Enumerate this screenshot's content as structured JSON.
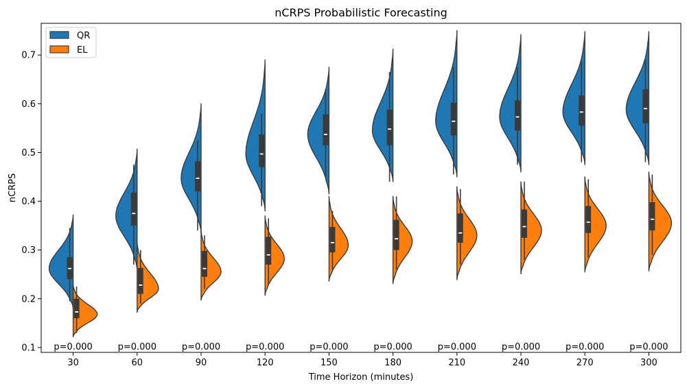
{
  "chart_data": {
    "type": "violin",
    "title": "nCRPS Probabilistic Forecasting",
    "xlabel": "Time Horizon (minutes)",
    "ylabel": "nCRPS",
    "categories": [
      "30",
      "60",
      "90",
      "120",
      "150",
      "180",
      "210",
      "240",
      "270",
      "300"
    ],
    "ylim": [
      0.09,
      0.765
    ],
    "yticks": [
      "0.1",
      "0.2",
      "0.3",
      "0.4",
      "0.5",
      "0.6",
      "0.7"
    ],
    "grid": false,
    "legend_position": "top-left",
    "annotations": [
      "p=0.000",
      "p=0.000",
      "p=0.000",
      "p=0.000",
      "p=0.000",
      "p=0.000",
      "p=0.000",
      "p=0.000",
      "p=0.000",
      "p=0.000"
    ],
    "series": [
      {
        "name": "QR",
        "color": "#1f77b4",
        "side": "left",
        "min": [
          0.195,
          0.27,
          0.34,
          0.39,
          0.45,
          0.44,
          0.455,
          0.475,
          0.48,
          0.48
        ],
        "q1": [
          0.24,
          0.35,
          0.42,
          0.47,
          0.515,
          0.515,
          0.535,
          0.545,
          0.555,
          0.56
        ],
        "median": [
          0.262,
          0.375,
          0.447,
          0.497,
          0.537,
          0.548,
          0.564,
          0.573,
          0.583,
          0.59
        ],
        "q3": [
          0.285,
          0.418,
          0.482,
          0.537,
          0.578,
          0.588,
          0.602,
          0.607,
          0.617,
          0.63
        ],
        "max": [
          0.345,
          0.475,
          0.525,
          0.58,
          0.63,
          0.665,
          0.675,
          0.675,
          0.685,
          0.69
        ],
        "kde_min": [
          0.18,
          0.26,
          0.335,
          0.38,
          0.415,
          0.44,
          0.45,
          0.46,
          0.475,
          0.475
        ],
        "kde_max": [
          0.372,
          0.507,
          0.6,
          0.69,
          0.675,
          0.712,
          0.75,
          0.742,
          0.748,
          0.748
        ],
        "mode": [
          0.262,
          0.37,
          0.447,
          0.497,
          0.537,
          0.545,
          0.564,
          0.573,
          0.583,
          0.588
        ],
        "peak_width": [
          35,
          31,
          29,
          28,
          31,
          30,
          31,
          31,
          32,
          33
        ]
      },
      {
        "name": "EL",
        "color": "#ff7f0e",
        "side": "right",
        "min": [
          0.13,
          0.19,
          0.22,
          0.23,
          0.26,
          0.26,
          0.27,
          0.28,
          0.285,
          0.29
        ],
        "q1": [
          0.16,
          0.21,
          0.245,
          0.27,
          0.295,
          0.3,
          0.315,
          0.325,
          0.335,
          0.34
        ],
        "median": [
          0.173,
          0.228,
          0.262,
          0.29,
          0.315,
          0.323,
          0.335,
          0.348,
          0.357,
          0.363
        ],
        "q3": [
          0.2,
          0.263,
          0.298,
          0.327,
          0.347,
          0.362,
          0.375,
          0.383,
          0.39,
          0.398
        ],
        "max": [
          0.225,
          0.3,
          0.33,
          0.365,
          0.38,
          0.41,
          0.425,
          0.44,
          0.445,
          0.455
        ],
        "kde_min": [
          0.122,
          0.172,
          0.197,
          0.207,
          0.236,
          0.231,
          0.239,
          0.251,
          0.255,
          0.257
        ],
        "kde_max": [
          0.228,
          0.315,
          0.34,
          0.37,
          0.41,
          0.41,
          0.43,
          0.44,
          0.45,
          0.46
        ],
        "mode": [
          0.168,
          0.22,
          0.255,
          0.282,
          0.31,
          0.318,
          0.33,
          0.34,
          0.35,
          0.355
        ],
        "peak_width": [
          35,
          31,
          29,
          28,
          28,
          28,
          29,
          30,
          31,
          33
        ]
      }
    ]
  }
}
